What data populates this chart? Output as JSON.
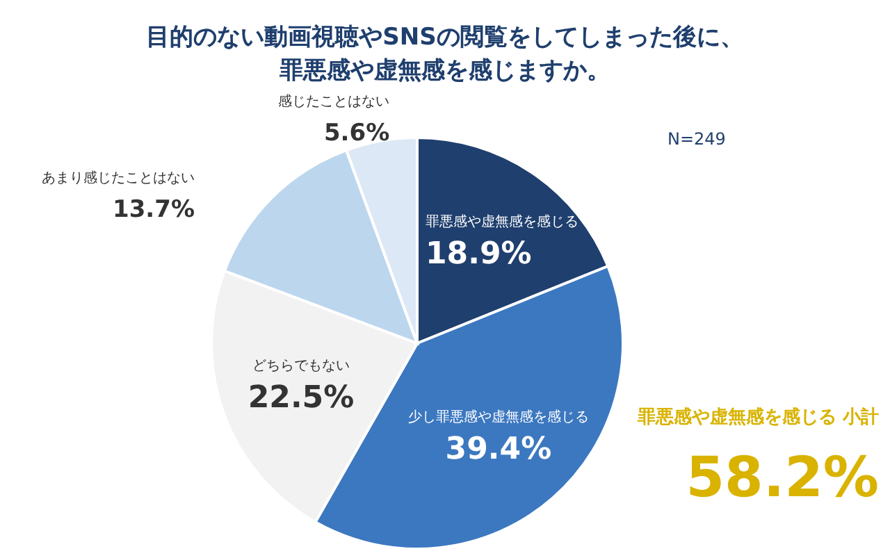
{
  "chart_data": {
    "type": "pie",
    "title": "目的のない動画視聴やSNSの閲覧をしてしまった後に、罪悪感や虚無感を感じますか。",
    "categories": [
      "罪悪感や虚無感を感じる",
      "少し罪悪感や虚無感を感じる",
      "どちらでもない",
      "あまり感じたことはない",
      "感じたことはない"
    ],
    "values": [
      18.9,
      39.4,
      22.5,
      13.7,
      5.6
    ],
    "colors": [
      "#1f3f6e",
      "#3c78c0",
      "#f2f2f2",
      "#bcd6ee",
      "#dce8f5"
    ],
    "value_labels": [
      "18.9%",
      "39.4%",
      "22.5%",
      "13.7%",
      "5.6%"
    ],
    "annotations": [
      "N=249",
      "罪悪感や虚無感を感じる 小計",
      "58.2%"
    ],
    "legend": false
  }
}
